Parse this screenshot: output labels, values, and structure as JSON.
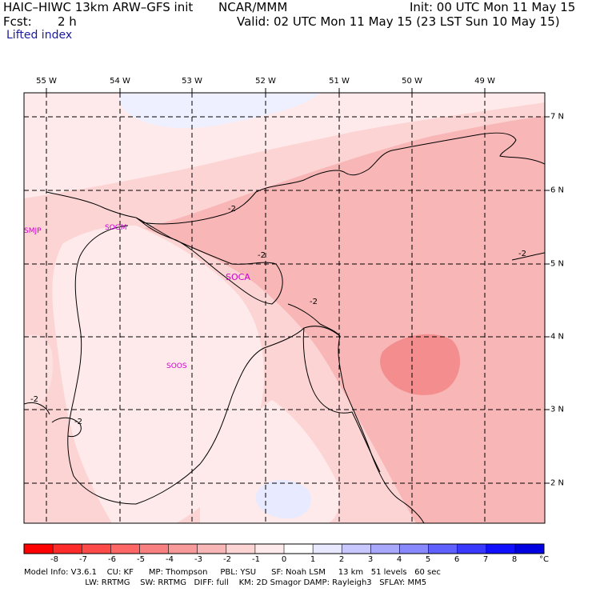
{
  "header": {
    "model": "HAIC–HIWC 13km ARW–GFS init",
    "org": "NCAR/MMM",
    "init": "Init: 00 UTC Mon 11 May 15",
    "fcst_label": "Fcst:",
    "fcst_value": "2 h",
    "valid": "Valid: 02 UTC Mon 11 May 15 (23 LST Sun 10 May 15)",
    "field": "Lifted index"
  },
  "map": {
    "lon_labels": [
      "55 W",
      "54 W",
      "53 W",
      "52 W",
      "51 W",
      "50 W",
      "49 W"
    ],
    "lat_labels": [
      "7 N",
      "6 N",
      "5 N",
      "4 N",
      "3 N",
      "2 N"
    ],
    "stations": [
      "SMJP",
      "SOGM",
      "SOCA",
      "SOOS"
    ],
    "contour_labels": [
      "-2",
      "-2",
      "-2",
      "-2",
      "-2",
      "-2"
    ]
  },
  "colorbar": {
    "unit": "°C",
    "ticks": [
      "-8",
      "-7",
      "-6",
      "-5",
      "-4",
      "-3",
      "-2",
      "-1",
      "0",
      "1",
      "2",
      "3",
      "4",
      "5",
      "6",
      "7",
      "8"
    ],
    "colors": [
      "#ff0000",
      "#ff2a2a",
      "#ff4a4a",
      "#ff6666",
      "#f88080",
      "#f89a9a",
      "#f8b6b6",
      "#fcd4d4",
      "#feeaea",
      "#ffffff",
      "#e8e8ff",
      "#c8c8ff",
      "#a8a8ff",
      "#8888ff",
      "#6060ff",
      "#3838ff",
      "#1010ff",
      "#0000e0"
    ]
  },
  "footer": {
    "line1": "Model Info: V3.6.1    CU: KF      MP: Thompson     PBL: YSU      SF: Noah LSM     13 km   51 levels   60 sec",
    "line2": "                        LW: RRTMG    SW: RRTMG   DIFF: full    KM: 2D Smagor DAMP: Rayleigh3   SFLAY: MM5"
  }
}
